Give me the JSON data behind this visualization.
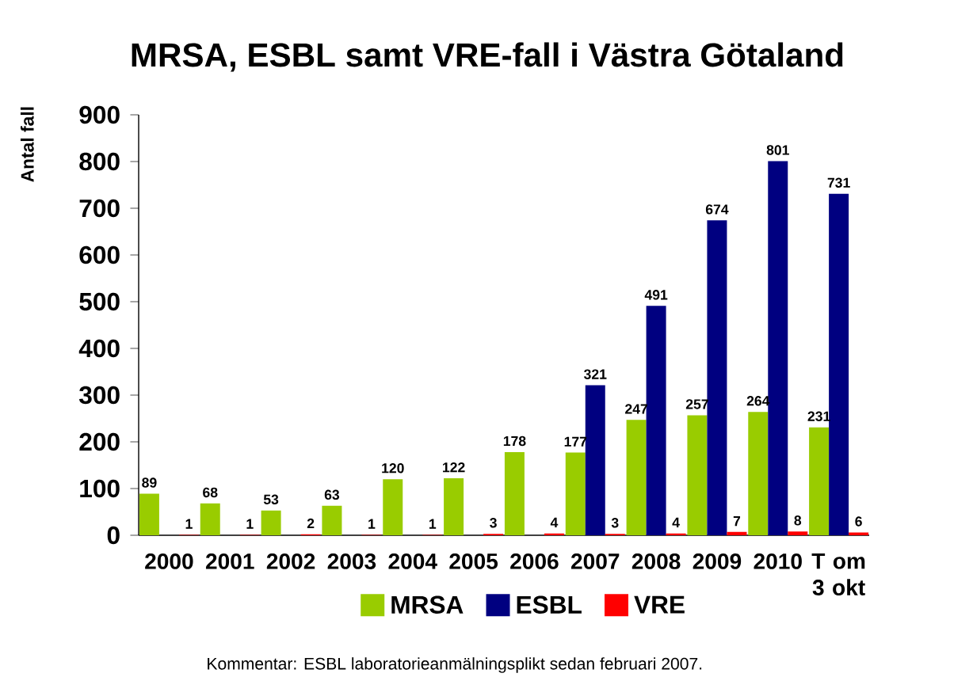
{
  "chart_data": {
    "type": "bar",
    "title": "MRSA, ESBL samt VRE-fall i Västra Götaland",
    "ylabel": "Antal fall",
    "categories": [
      "2000",
      "2001",
      "2002",
      "2003",
      "2004",
      "2005",
      "2006",
      "2007",
      "2008",
      "2009",
      "2010",
      "T om 3 okt"
    ],
    "series": [
      {
        "name": "MRSA",
        "color": "#99cc00",
        "values": [
          89,
          68,
          53,
          63,
          120,
          122,
          178,
          177,
          247,
          257,
          264,
          231
        ]
      },
      {
        "name": "ESBL",
        "color": "#000080",
        "values": [
          null,
          null,
          null,
          null,
          null,
          null,
          null,
          321,
          491,
          674,
          801,
          731
        ]
      },
      {
        "name": "VRE",
        "color": "#ff0000",
        "values": [
          1,
          1,
          2,
          1,
          1,
          3,
          4,
          3,
          4,
          7,
          8,
          6
        ]
      }
    ],
    "ylim": [
      0,
      900
    ],
    "yticks": [
      0,
      100,
      200,
      300,
      400,
      500,
      600,
      700,
      800,
      900
    ],
    "data_labels": true,
    "legend": "bottom",
    "grid": false,
    "annotations": [
      "Kommentar: ESBL laboratorieanmälningsplikt sedan februari 2007."
    ]
  }
}
